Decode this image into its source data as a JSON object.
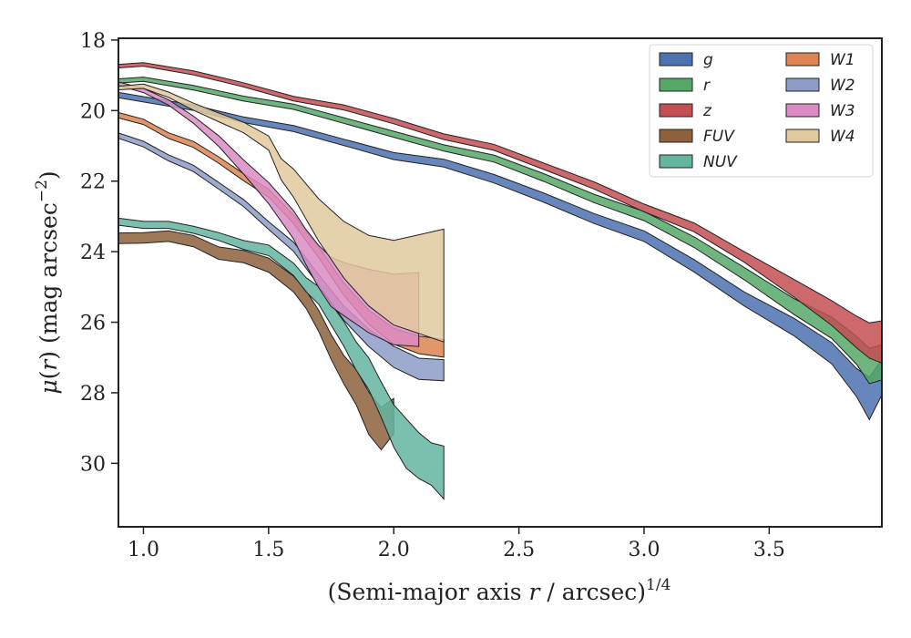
{
  "chart_data": {
    "type": "area",
    "xlabel": "(Semi-major axis r / arcsec)^{1/4}",
    "xlabel_parts": {
      "prefix": "(Semi-major axis ",
      "var": "r",
      "mid": " / arcsec)",
      "sup": "1/4"
    },
    "ylabel": "μ(r) (mag arcsec^{-2})",
    "ylabel_parts": {
      "mu": "μ",
      "open": "(",
      "var": "r",
      "close": ")",
      "unit": " (mag arcsec",
      "sup": "−2",
      "end": ")"
    },
    "xlim": [
      0.9,
      3.95
    ],
    "ylim": [
      31.8,
      17.95
    ],
    "y_inverted": true,
    "xticks": [
      "1.0",
      "1.5",
      "2.0",
      "2.5",
      "3.0",
      "3.5"
    ],
    "xtick_values": [
      1.0,
      1.5,
      2.0,
      2.5,
      3.0,
      3.5
    ],
    "yticks": [
      "18",
      "20",
      "22",
      "24",
      "26",
      "28",
      "30"
    ],
    "ytick_values": [
      18,
      20,
      22,
      24,
      26,
      28,
      30
    ],
    "grid": false,
    "legend_position": "top-right",
    "legend_columns": 2,
    "series": [
      {
        "name": "g",
        "color": "#4c72b0",
        "x": [
          0.9,
          1.0,
          1.2,
          1.4,
          1.6,
          1.8,
          2.0,
          2.2,
          2.4,
          2.6,
          2.8,
          3.0,
          3.2,
          3.4,
          3.6,
          3.75,
          3.85,
          3.9,
          3.95
        ],
        "y": [
          19.62,
          19.7,
          19.9,
          20.2,
          20.55,
          20.9,
          21.25,
          21.55,
          21.95,
          22.45,
          23.0,
          23.6,
          24.4,
          25.3,
          26.2,
          26.9,
          27.7,
          28.1,
          27.6
        ],
        "w": [
          0.15,
          0.15,
          0.15,
          0.16,
          0.17,
          0.18,
          0.2,
          0.22,
          0.24,
          0.26,
          0.28,
          0.3,
          0.35,
          0.4,
          0.5,
          0.6,
          0.8,
          1.2,
          1.0
        ]
      },
      {
        "name": "r",
        "color": "#55a868",
        "x": [
          0.9,
          1.0,
          1.2,
          1.4,
          1.6,
          1.8,
          2.0,
          2.2,
          2.4,
          2.6,
          2.8,
          3.0,
          3.2,
          3.4,
          3.6,
          3.75,
          3.85,
          3.9,
          3.95
        ],
        "y": [
          19.1,
          19.15,
          19.35,
          19.62,
          19.95,
          20.3,
          20.65,
          21.0,
          21.4,
          21.9,
          22.45,
          23.05,
          23.75,
          24.6,
          25.5,
          26.2,
          26.8,
          27.2,
          27.2
        ],
        "w": [
          0.12,
          0.12,
          0.13,
          0.14,
          0.15,
          0.16,
          0.17,
          0.18,
          0.2,
          0.22,
          0.24,
          0.26,
          0.3,
          0.35,
          0.45,
          0.6,
          0.8,
          1.0,
          1.0
        ]
      },
      {
        "name": "z",
        "color": "#c44e52",
        "x": [
          0.9,
          1.0,
          1.2,
          1.4,
          1.6,
          1.8,
          2.0,
          2.2,
          2.4,
          2.6,
          2.8,
          3.0,
          3.2,
          3.4,
          3.6,
          3.75,
          3.85,
          3.9,
          3.95
        ],
        "y": [
          18.7,
          18.75,
          18.95,
          19.25,
          19.6,
          19.95,
          20.3,
          20.7,
          21.1,
          21.6,
          22.1,
          22.7,
          23.35,
          24.15,
          25.0,
          25.8,
          26.3,
          26.5,
          26.5
        ],
        "w": [
          0.1,
          0.1,
          0.11,
          0.12,
          0.13,
          0.14,
          0.15,
          0.16,
          0.17,
          0.18,
          0.2,
          0.22,
          0.25,
          0.3,
          0.5,
          0.7,
          0.9,
          1.0,
          1.2
        ]
      },
      {
        "name": "FUV",
        "color": "#8c613c",
        "x": [
          0.9,
          1.0,
          1.1,
          1.2,
          1.3,
          1.4,
          1.5,
          1.6,
          1.65,
          1.7,
          1.75,
          1.8,
          1.85,
          1.9,
          1.95,
          2.0
        ],
        "y": [
          23.6,
          23.55,
          23.6,
          23.7,
          24.0,
          24.2,
          24.4,
          24.9,
          25.3,
          26.0,
          26.7,
          27.3,
          27.9,
          28.6,
          29.0,
          28.6
        ],
        "w": [
          0.3,
          0.3,
          0.3,
          0.32,
          0.35,
          0.35,
          0.4,
          0.45,
          0.5,
          0.6,
          0.7,
          0.8,
          1.0,
          1.2,
          1.2,
          1.0
        ]
      },
      {
        "name": "NUV",
        "color": "#64b5a0",
        "x": [
          0.9,
          1.0,
          1.1,
          1.2,
          1.3,
          1.4,
          1.5,
          1.6,
          1.65,
          1.7,
          1.75,
          1.8,
          1.85,
          1.9,
          1.95,
          2.0,
          2.05,
          2.1,
          2.15,
          2.2
        ],
        "y": [
          23.15,
          23.2,
          23.3,
          23.4,
          23.55,
          23.75,
          24.0,
          24.5,
          24.9,
          25.3,
          25.8,
          26.3,
          26.9,
          27.5,
          28.2,
          28.9,
          29.5,
          29.8,
          30.0,
          30.2
        ],
        "w": [
          0.2,
          0.2,
          0.2,
          0.2,
          0.22,
          0.25,
          0.3,
          0.35,
          0.4,
          0.5,
          0.6,
          0.7,
          0.8,
          0.9,
          1.0,
          1.2,
          1.4,
          1.3,
          1.2,
          1.5
        ]
      },
      {
        "name": "W1",
        "color": "#dd8452",
        "x": [
          0.9,
          1.0,
          1.1,
          1.2,
          1.3,
          1.4,
          1.5,
          1.6,
          1.7,
          1.8,
          1.9,
          2.0,
          2.1,
          2.2
        ],
        "y": [
          20.15,
          20.3,
          20.65,
          21.0,
          21.4,
          21.85,
          22.4,
          23.1,
          24.0,
          25.0,
          25.9,
          26.4,
          26.6,
          26.8
        ],
        "w": [
          0.15,
          0.15,
          0.16,
          0.17,
          0.18,
          0.2,
          0.22,
          0.25,
          0.3,
          0.35,
          0.4,
          0.45,
          0.5,
          0.5
        ]
      },
      {
        "name": "W2",
        "color": "#8c9ec6",
        "x": [
          0.9,
          1.0,
          1.1,
          1.2,
          1.3,
          1.4,
          1.5,
          1.6,
          1.7,
          1.8,
          1.9,
          2.0,
          2.1,
          2.2
        ],
        "y": [
          20.75,
          20.95,
          21.3,
          21.7,
          22.15,
          22.6,
          23.2,
          23.9,
          24.8,
          25.7,
          26.5,
          27.0,
          27.3,
          27.3
        ],
        "w": [
          0.15,
          0.16,
          0.17,
          0.18,
          0.19,
          0.2,
          0.22,
          0.26,
          0.3,
          0.4,
          0.5,
          0.6,
          0.6,
          0.6
        ]
      },
      {
        "name": "W3",
        "color": "#da8bc3",
        "x": [
          0.9,
          1.0,
          1.1,
          1.2,
          1.3,
          1.4,
          1.5,
          1.6,
          1.65,
          1.7,
          1.75,
          1.8,
          1.9,
          2.0,
          2.1
        ],
        "y": [
          19.3,
          19.45,
          19.75,
          20.2,
          20.9,
          21.6,
          22.3,
          23.3,
          23.9,
          24.4,
          24.8,
          25.1,
          25.4,
          25.6,
          25.7
        ],
        "w": [
          0.1,
          0.12,
          0.15,
          0.2,
          0.3,
          0.4,
          0.6,
          0.8,
          1.0,
          1.2,
          1.4,
          1.5,
          1.8,
          2.0,
          2.1
        ]
      },
      {
        "name": "W4",
        "color": "#e1c99e",
        "x": [
          0.9,
          1.0,
          1.1,
          1.2,
          1.3,
          1.4,
          1.5,
          1.55,
          1.6,
          1.7,
          1.8,
          1.9,
          2.0,
          2.1,
          2.2
        ],
        "y": [
          19.3,
          19.35,
          19.55,
          19.85,
          20.25,
          20.5,
          20.9,
          21.6,
          22.1,
          23.1,
          23.9,
          24.6,
          24.9,
          24.9,
          24.9
        ],
        "w": [
          0.1,
          0.12,
          0.15,
          0.2,
          0.25,
          0.3,
          0.4,
          0.6,
          0.8,
          1.2,
          1.6,
          2.0,
          2.4,
          2.8,
          3.2
        ]
      }
    ]
  }
}
